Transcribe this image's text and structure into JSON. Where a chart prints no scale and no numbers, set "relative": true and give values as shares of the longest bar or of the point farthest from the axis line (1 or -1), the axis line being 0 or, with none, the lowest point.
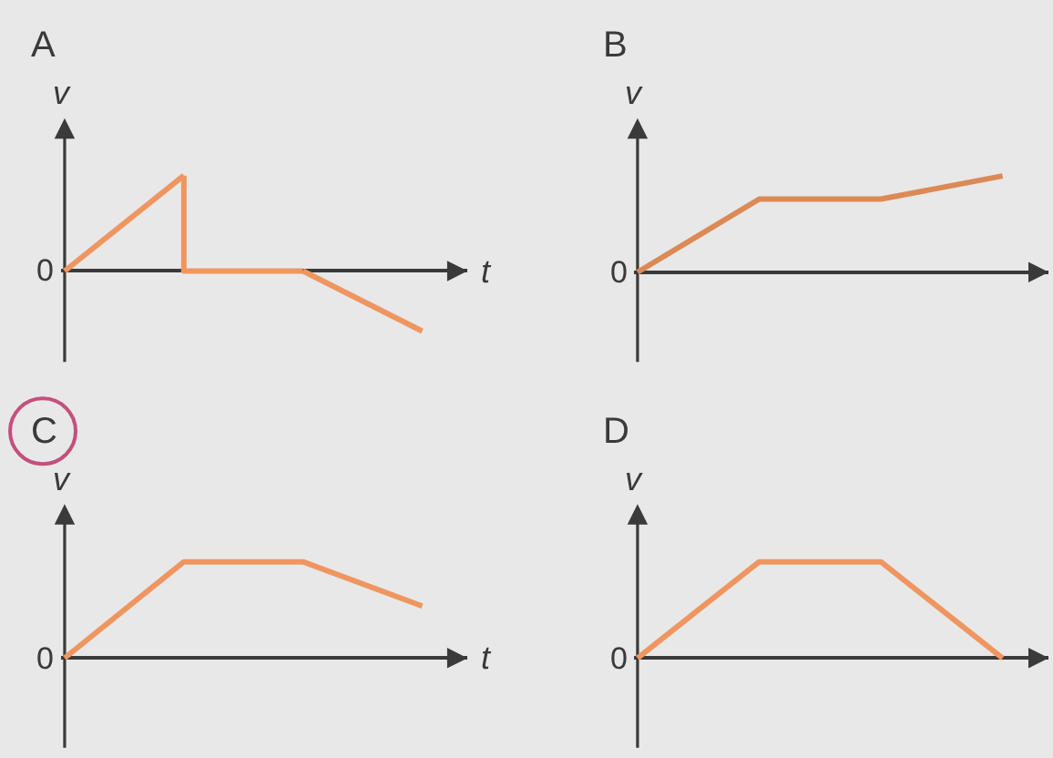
{
  "chart_data": [
    {
      "type": "line",
      "title": "A",
      "xlabel": "t",
      "ylabel": "v",
      "categories": [
        null,
        null,
        null,
        null
      ],
      "relative": true,
      "series": [
        {
          "color": "#ef9660",
          "values": [
            0,
            1,
            null,
            null
          ]
        },
        {
          "type": "step",
          "color": "#ef9660",
          "values": [
            null,
            1,
            0,
            null
          ]
        },
        {
          "color": "#ef9660",
          "values": [
            null,
            null,
            0,
            -0.63
          ]
        }
      ],
      "annotations": [
        "0"
      ]
    },
    {
      "type": "line",
      "title": "B",
      "ylabel": "v",
      "categories": [
        null,
        null,
        null,
        null
      ],
      "relative": true,
      "values": [
        0,
        0.76,
        0.76,
        1
      ],
      "color": "#dc8a55",
      "annotations": [
        "0"
      ]
    },
    {
      "type": "line",
      "title": "C",
      "xlabel": "t",
      "ylabel": "v",
      "categories": [
        null,
        null,
        null,
        null
      ],
      "relative": true,
      "values": [
        0,
        1,
        1,
        0.54
      ],
      "color": "#ef9660",
      "annotations": [
        "0"
      ]
    },
    {
      "type": "line",
      "title": "D",
      "ylabel": "v",
      "categories": [
        null,
        null,
        null,
        null
      ],
      "relative": true,
      "values": [
        0,
        1,
        1,
        0
      ],
      "color": "#ef9660",
      "annotations": [
        "0"
      ]
    }
  ]
}
